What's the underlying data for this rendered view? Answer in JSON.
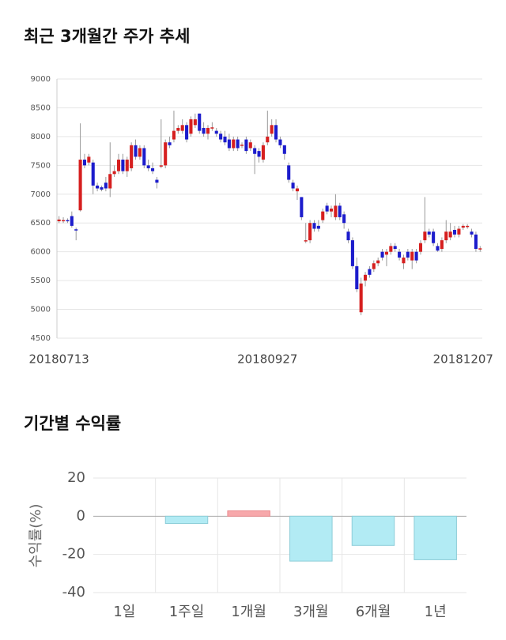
{
  "chart_data": [
    {
      "type": "candlestick",
      "title": "최근 3개월간 주가 추세",
      "categories": [
        "20180713",
        null,
        null,
        null,
        null,
        null,
        null,
        null,
        null,
        null,
        null,
        null,
        null,
        null,
        null,
        null,
        null,
        null,
        null,
        null,
        null,
        null,
        null,
        null,
        null,
        null,
        null,
        null,
        null,
        null,
        null,
        null,
        null,
        null,
        null,
        null,
        null,
        null,
        null,
        null,
        null,
        null,
        null,
        null,
        null,
        null,
        null,
        null,
        null,
        "20180927",
        null,
        null,
        null,
        null,
        null,
        null,
        null,
        null,
        null,
        null,
        null,
        null,
        null,
        null,
        null,
        null,
        null,
        null,
        null,
        null,
        null,
        null,
        null,
        null,
        null,
        null,
        null,
        null,
        null,
        null,
        null,
        null,
        null,
        null,
        null,
        null,
        null,
        null,
        null,
        null,
        null,
        null,
        null,
        null,
        null,
        "20181207",
        null,
        null,
        null,
        null
      ],
      "values": [
        [
          6530,
          6620,
          6500,
          6560
        ],
        [
          6540,
          6600,
          6500,
          6550
        ],
        [
          6550,
          6580,
          6500,
          6530
        ],
        [
          6620,
          6700,
          6420,
          6450
        ],
        [
          6390,
          6420,
          6200,
          6380
        ],
        [
          6720,
          8230,
          6700,
          7600
        ],
        [
          7600,
          7700,
          7450,
          7500
        ],
        [
          7550,
          7700,
          7500,
          7650
        ],
        [
          7550,
          7600,
          7000,
          7150
        ],
        [
          7150,
          7200,
          7050,
          7100
        ],
        [
          7120,
          7150,
          7050,
          7080
        ],
        [
          7200,
          7300,
          7050,
          7100
        ],
        [
          7100,
          7900,
          6950,
          7350
        ],
        [
          7350,
          7500,
          7300,
          7400
        ],
        [
          7400,
          7700,
          7350,
          7600
        ],
        [
          7600,
          7700,
          7350,
          7400
        ],
        [
          7400,
          7650,
          7300,
          7600
        ],
        [
          7450,
          7900,
          7400,
          7850
        ],
        [
          7850,
          7950,
          7600,
          7650
        ],
        [
          7650,
          7850,
          7600,
          7800
        ],
        [
          7800,
          7850,
          7450,
          7500
        ],
        [
          7500,
          7600,
          7400,
          7450
        ],
        [
          7450,
          7550,
          7350,
          7400
        ],
        [
          7250,
          7300,
          7100,
          7200
        ],
        [
          7480,
          8300,
          7450,
          7500
        ],
        [
          7500,
          7950,
          7450,
          7900
        ],
        [
          7900,
          8000,
          7800,
          7850
        ],
        [
          7950,
          8450,
          7900,
          8100
        ],
        [
          8100,
          8200,
          8050,
          8150
        ],
        [
          8100,
          8300,
          8050,
          8200
        ],
        [
          8200,
          8250,
          7900,
          7950
        ],
        [
          8050,
          8350,
          8000,
          8300
        ],
        [
          8200,
          8400,
          8150,
          8300
        ],
        [
          8400,
          8400,
          8050,
          8100
        ],
        [
          8150,
          8250,
          8000,
          8050
        ],
        [
          8050,
          8200,
          7950,
          8150
        ],
        [
          8150,
          8250,
          8100,
          8160
        ],
        [
          8100,
          8150,
          8000,
          8050
        ],
        [
          8050,
          8100,
          7900,
          7950
        ],
        [
          8000,
          8100,
          7850,
          7900
        ],
        [
          7950,
          8050,
          7750,
          7800
        ],
        [
          7800,
          8000,
          7750,
          7950
        ],
        [
          7950,
          8000,
          7750,
          7800
        ],
        [
          7850,
          7900,
          7800,
          7860
        ],
        [
          7950,
          8000,
          7700,
          7750
        ],
        [
          7800,
          7950,
          7750,
          7900
        ],
        [
          7800,
          7850,
          7350,
          7700
        ],
        [
          7750,
          7800,
          7550,
          7650
        ],
        [
          7600,
          7900,
          7550,
          7850
        ],
        [
          7900,
          8450,
          7850,
          8000
        ],
        [
          8050,
          8300,
          8000,
          8200
        ],
        [
          8200,
          8300,
          7900,
          7950
        ],
        [
          7950,
          8000,
          7800,
          7850
        ],
        [
          7850,
          7850,
          7600,
          7700
        ],
        [
          7500,
          7550,
          7200,
          7250
        ],
        [
          7200,
          7250,
          7050,
          7100
        ],
        [
          7050,
          7150,
          6900,
          7100
        ],
        [
          6950,
          6950,
          6550,
          6600
        ],
        [
          6200,
          6500,
          6150,
          6200
        ],
        [
          6200,
          6550,
          6150,
          6500
        ],
        [
          6500,
          6550,
          6350,
          6400
        ],
        [
          6450,
          6550,
          6350,
          6400
        ],
        [
          6550,
          6750,
          6500,
          6700
        ],
        [
          6800,
          6850,
          6650,
          6700
        ],
        [
          6700,
          6800,
          6600,
          6750
        ],
        [
          6600,
          7000,
          6550,
          6800
        ],
        [
          6800,
          6850,
          6550,
          6600
        ],
        [
          6650,
          6700,
          6400,
          6500
        ],
        [
          6350,
          6400,
          6150,
          6200
        ],
        [
          6200,
          6250,
          5700,
          5750
        ],
        [
          5750,
          5900,
          5300,
          5350
        ],
        [
          4950,
          5550,
          4900,
          5450
        ],
        [
          5500,
          5650,
          5400,
          5600
        ],
        [
          5700,
          5750,
          5550,
          5600
        ],
        [
          5700,
          5850,
          5650,
          5800
        ],
        [
          5800,
          5900,
          5750,
          5850
        ],
        [
          6000,
          6050,
          5850,
          5900
        ],
        [
          5950,
          6050,
          5750,
          6000
        ],
        [
          6000,
          6150,
          5950,
          6100
        ],
        [
          6100,
          6150,
          6000,
          6050
        ],
        [
          6000,
          6050,
          5850,
          5900
        ],
        [
          5800,
          5950,
          5700,
          5900
        ],
        [
          6000,
          6050,
          5850,
          5900
        ],
        [
          5850,
          6050,
          5700,
          6000
        ],
        [
          6000,
          6050,
          5800,
          5850
        ],
        [
          6000,
          6200,
          5950,
          6150
        ],
        [
          6200,
          6950,
          6150,
          6350
        ],
        [
          6350,
          6400,
          6250,
          6300
        ],
        [
          6350,
          6400,
          6100,
          6150
        ],
        [
          6100,
          6150,
          6000,
          6020
        ],
        [
          6050,
          6250,
          6000,
          6200
        ],
        [
          6200,
          6550,
          6150,
          6350
        ],
        [
          6250,
          6500,
          6200,
          6350
        ],
        [
          6380,
          6450,
          6250,
          6300
        ],
        [
          6300,
          6450,
          6250,
          6400
        ],
        [
          6420,
          6480,
          6380,
          6450
        ],
        [
          6440,
          6480,
          6400,
          6450
        ],
        [
          6350,
          6400,
          6250,
          6300
        ],
        [
          6300,
          6350,
          6000,
          6050
        ],
        [
          6050,
          6100,
          6000,
          6060
        ]
      ],
      "up_color": "#d61f1f",
      "down_color": "#1c1ccc",
      "ylim": [
        4500,
        9000
      ],
      "yticks": [
        4500,
        5000,
        5500,
        6000,
        6500,
        7000,
        7500,
        8000,
        8500,
        9000
      ],
      "grid": true
    },
    {
      "type": "bar",
      "title": "기간별 수익률",
      "ylabel": "수익률(%)",
      "categories": [
        "1일",
        "1주일",
        "1개월",
        "3개월",
        "6개월",
        "1년"
      ],
      "values": [
        0,
        -3.8,
        2.8,
        -23.5,
        -15.3,
        -22.8
      ],
      "positive_color": "#f7a8ab",
      "negative_color": "#b2ebf4",
      "ylim": [
        -40,
        20
      ],
      "yticks": [
        20,
        0,
        -20,
        -40
      ],
      "grid": true
    }
  ]
}
